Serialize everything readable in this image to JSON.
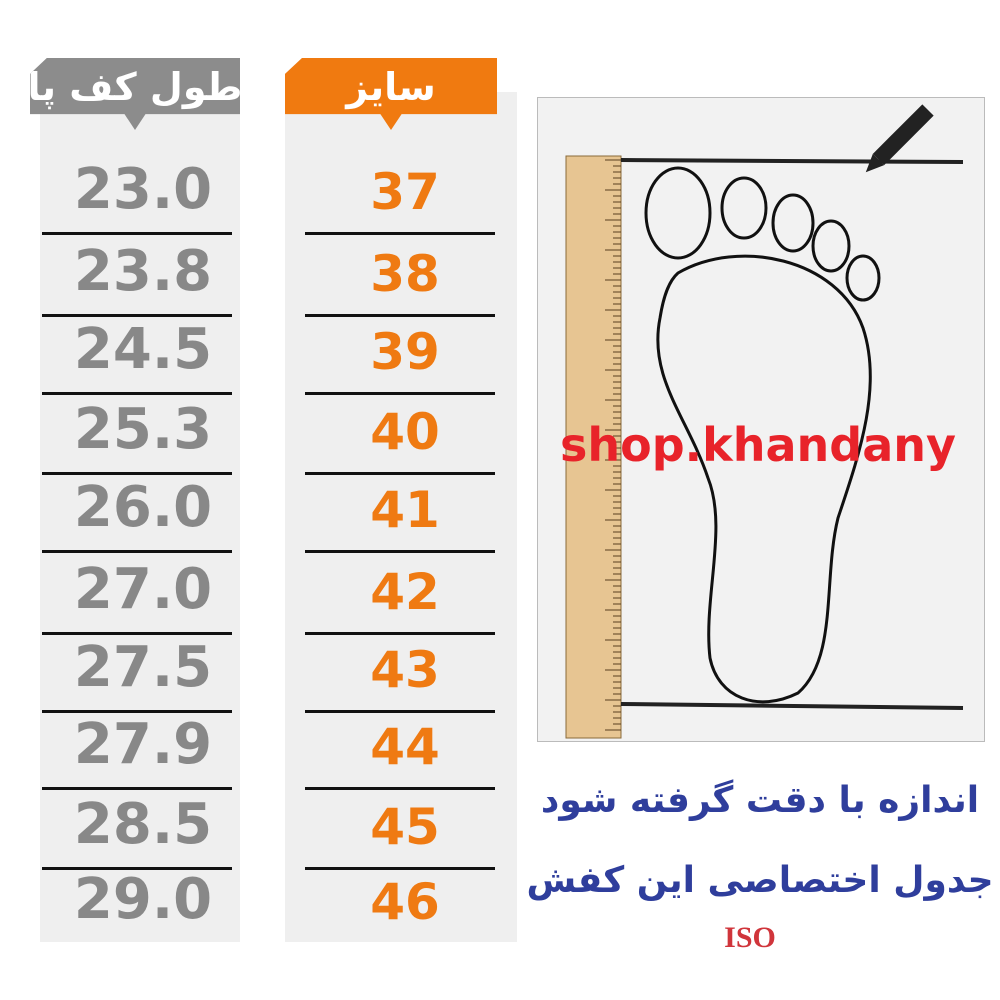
{
  "headers": {
    "foot_length": "طول کف پا",
    "size": "سایز"
  },
  "rows": [
    {
      "length": "23.0",
      "size": "37"
    },
    {
      "length": "23.8",
      "size": "38"
    },
    {
      "length": "24.5",
      "size": "39"
    },
    {
      "length": "25.3",
      "size": "40"
    },
    {
      "length": "26.0",
      "size": "41"
    },
    {
      "length": "27.0",
      "size": "42"
    },
    {
      "length": "27.5",
      "size": "43"
    },
    {
      "length": "27.9",
      "size": "44"
    },
    {
      "length": "28.5",
      "size": "45"
    },
    {
      "length": "29.0",
      "size": "46"
    }
  ],
  "watermark": "shop.khandany",
  "note_line1": "اندازه با دقت گرفته شود",
  "note_line2": "جدول اختصاصی این کفش",
  "standard": "ISO",
  "colors": {
    "orange": "#f07a10",
    "gray": "#8c8c8c",
    "blue": "#2f3e9c",
    "red": "#e8232a"
  }
}
